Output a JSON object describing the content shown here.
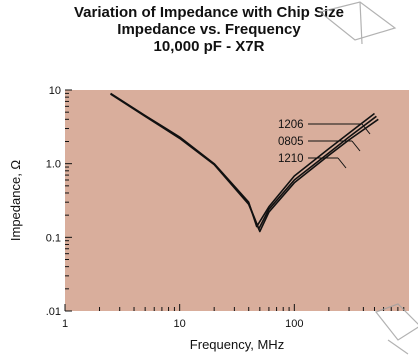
{
  "chart_data": {
    "type": "line",
    "title": "Variation of Impedance with Chip Size",
    "subtitle": "Impedance vs. Frequency",
    "subtitle2": "10,000 pF - X7R",
    "xlabel": "Frequency, MHz",
    "ylabel": "Impedance, Ω",
    "x_scale": "log",
    "y_scale": "log",
    "xlim": [
      1,
      1000
    ],
    "ylim": [
      0.01,
      10
    ],
    "x_ticks": [
      {
        "value": 1,
        "label": "1"
      },
      {
        "value": 10,
        "label": "10"
      },
      {
        "value": 100,
        "label": "100"
      }
    ],
    "y_ticks": [
      {
        "value": 10,
        "label": "10"
      },
      {
        "value": 1,
        "label": "1.0"
      },
      {
        "value": 0.1,
        "label": "0.1"
      },
      {
        "value": 0.01,
        "label": ".01"
      }
    ],
    "plot_background": "#d9ae9c",
    "line_color": "#111111",
    "grid": false,
    "series": [
      {
        "name": "1206",
        "x": [
          2.5,
          5,
          10,
          20,
          40,
          47,
          60,
          100,
          200,
          300,
          500
        ],
        "y": [
          9.0,
          4.5,
          2.3,
          1.0,
          0.3,
          0.14,
          0.26,
          0.68,
          1.6,
          2.6,
          4.8
        ]
      },
      {
        "name": "0805",
        "x": [
          2.5,
          5,
          10,
          20,
          40,
          49,
          60,
          100,
          200,
          300,
          520
        ],
        "y": [
          8.9,
          4.45,
          2.25,
          0.98,
          0.29,
          0.13,
          0.24,
          0.6,
          1.4,
          2.3,
          4.4
        ]
      },
      {
        "name": "1210",
        "x": [
          2.5,
          5,
          10,
          20,
          40,
          50,
          60,
          100,
          200,
          300,
          540
        ],
        "y": [
          8.8,
          4.4,
          2.2,
          0.97,
          0.28,
          0.12,
          0.22,
          0.55,
          1.3,
          2.1,
          4.0
        ]
      }
    ]
  }
}
